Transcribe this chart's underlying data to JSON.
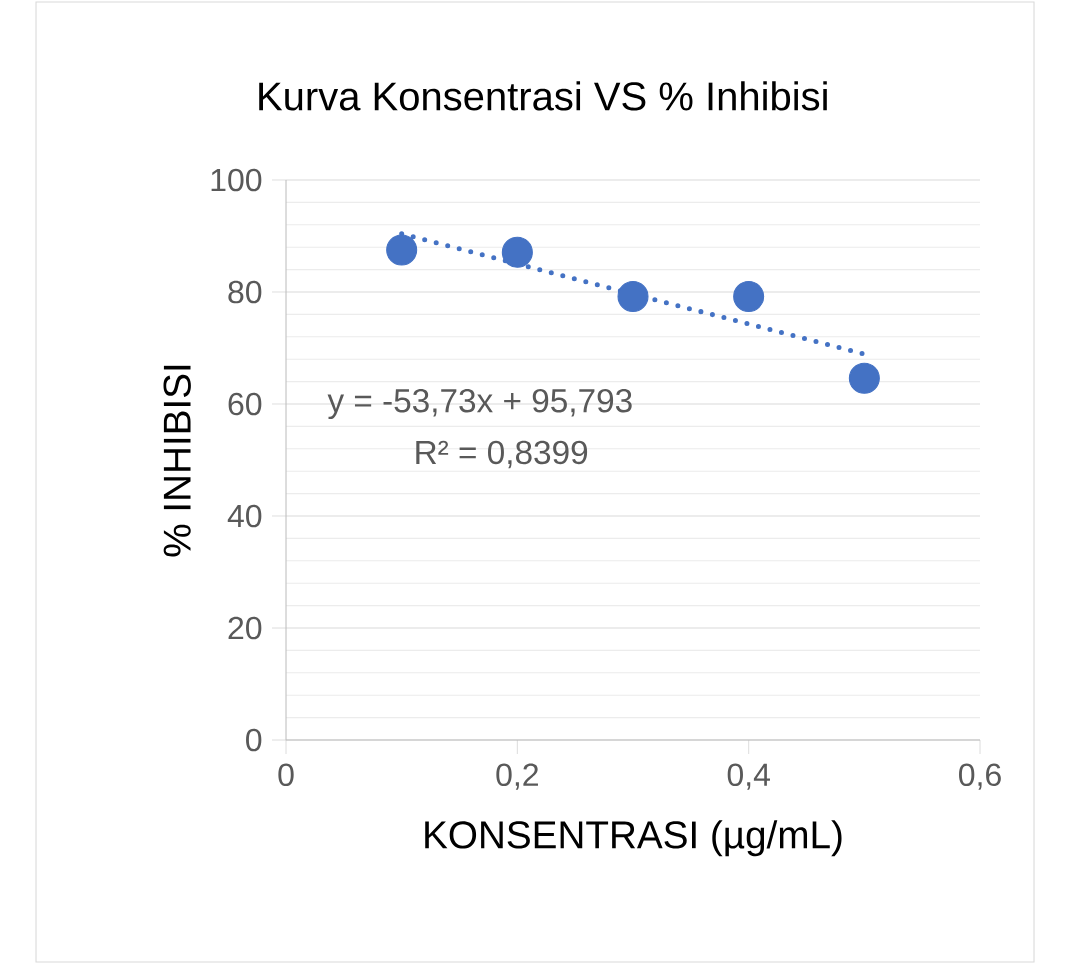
{
  "chart_data": {
    "type": "scatter",
    "title": "Kurva Konsentrasi VS % Inhibisi",
    "xlabel": "KONSENTRASI (µg/mL)",
    "ylabel": "% INHIBISI",
    "xlim": [
      0,
      0.6
    ],
    "ylim": [
      0,
      100
    ],
    "xticks": [
      0,
      {
        "value": 0.2,
        "label": "0,2"
      },
      {
        "value": 0.4,
        "label": "0,4"
      },
      {
        "value": 0.6,
        "label": "0,6"
      }
    ],
    "yticks": [
      0,
      20,
      40,
      60,
      80,
      100
    ],
    "grid": "y",
    "series": [
      {
        "marker": "circle",
        "color": "#4472c4",
        "x": [
          0.1,
          0.2,
          0.3,
          0.4,
          0.5
        ],
        "values": [
          87.5,
          87.1,
          79.2,
          79.2,
          64.6
        ]
      },
      {
        "type": "line",
        "line_style": "dotted",
        "marker": "none",
        "color": "#4472c4",
        "x": [
          0.1,
          0.5
        ],
        "values": [
          90.4,
          68.9
        ]
      }
    ],
    "annotations": [
      "y = -53,73x + 95,793",
      "R² = 0,8399"
    ]
  }
}
